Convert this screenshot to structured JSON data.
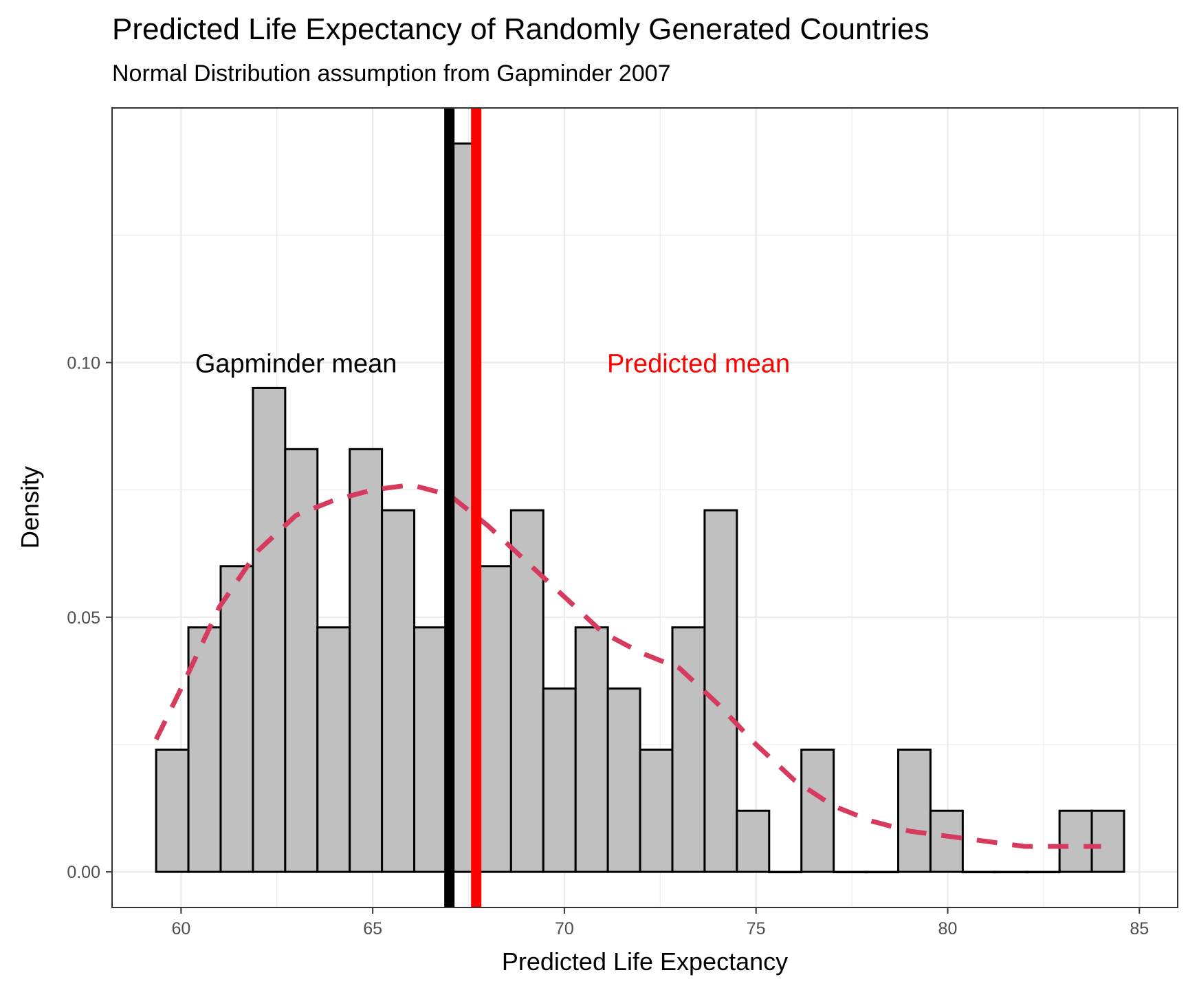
{
  "chart_data": {
    "type": "bar",
    "title": "Predicted Life Expectancy of Randomly Generated Countries",
    "subtitle": "Normal Distribution assumption from Gapminder 2007",
    "xlabel": "Predicted Life Expectancy",
    "ylabel": "Density",
    "xlim": [
      58.2,
      86.0
    ],
    "ylim": [
      -0.007,
      0.15
    ],
    "x_ticks": [
      60,
      65,
      70,
      75,
      80,
      85
    ],
    "x_tick_labels": [
      "60",
      "65",
      "70",
      "75",
      "80",
      "85"
    ],
    "y_ticks": [
      0.0,
      0.05,
      0.1
    ],
    "y_tick_labels": [
      "0.00",
      "0.05",
      "0.10"
    ],
    "grid": true,
    "bins": {
      "start": 59.35,
      "width": 0.8417,
      "density": [
        0.024,
        0.048,
        0.06,
        0.095,
        0.083,
        0.048,
        0.083,
        0.071,
        0.048,
        0.143,
        0.06,
        0.071,
        0.036,
        0.048,
        0.036,
        0.024,
        0.048,
        0.071,
        0.012,
        0.0,
        0.024,
        0.0,
        0.0,
        0.024,
        0.012,
        0.0,
        0.0,
        0.0,
        0.012,
        0.012
      ]
    },
    "density_curve": {
      "x": [
        59.35,
        60.0,
        61.0,
        62.0,
        63.0,
        64.0,
        65.0,
        66.0,
        67.0,
        68.0,
        69.0,
        70.0,
        71.0,
        72.0,
        73.0,
        74.0,
        75.0,
        76.0,
        77.0,
        78.0,
        79.0,
        80.0,
        81.0,
        82.0,
        83.0,
        84.0
      ],
      "y": [
        0.026,
        0.036,
        0.052,
        0.063,
        0.07,
        0.073,
        0.075,
        0.076,
        0.074,
        0.068,
        0.061,
        0.054,
        0.047,
        0.043,
        0.04,
        0.033,
        0.025,
        0.018,
        0.013,
        0.01,
        0.008,
        0.007,
        0.006,
        0.005,
        0.005,
        0.005
      ],
      "color": "#d63a5c"
    },
    "vlines": [
      {
        "label": "Gapminder mean",
        "x": 67.0,
        "color": "#000000"
      },
      {
        "label": "Predicted mean",
        "x": 67.7,
        "color": "#ff0000"
      }
    ],
    "annotations": [
      {
        "text": "Gapminder mean",
        "x": 63.0,
        "y": 0.1,
        "color": "#000000"
      },
      {
        "text": "Predicted mean",
        "x": 73.5,
        "y": 0.1,
        "color": "#ff0000"
      }
    ],
    "bar_fill": "#c0c0c0",
    "bar_stroke": "#000000"
  }
}
